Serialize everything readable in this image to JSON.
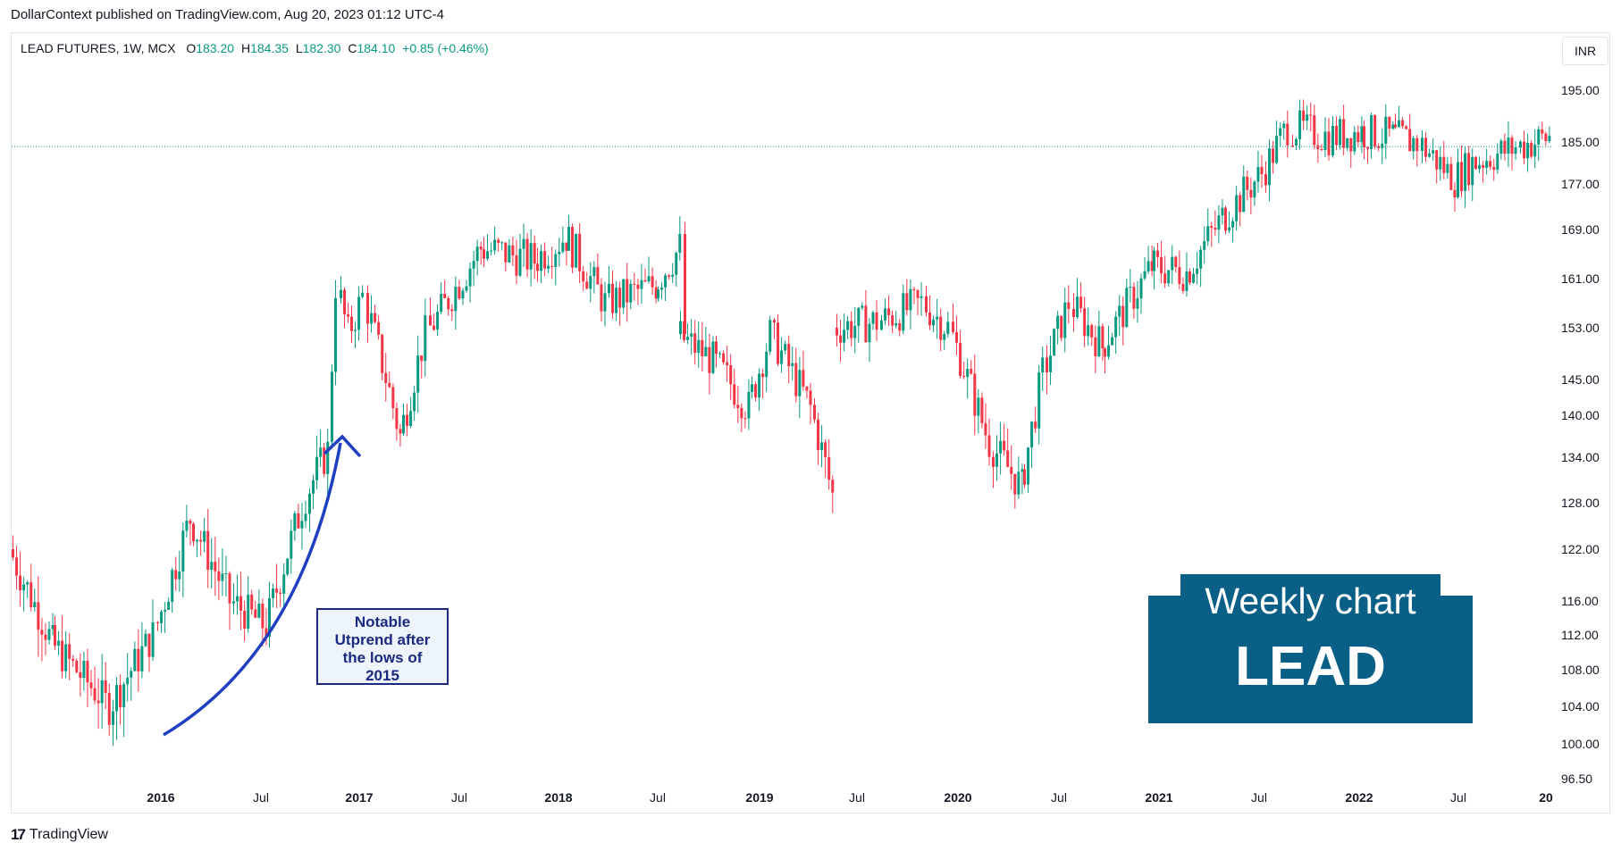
{
  "header": {
    "caption": "DollarContext published on TradingView.com, Aug 20, 2023 01:12 UTC-4"
  },
  "legend": {
    "symbol": "LEAD FUTURES, 1W, MCX",
    "o_label": "O",
    "o": "183.20",
    "h_label": "H",
    "h": "184.35",
    "l_label": "L",
    "l": "182.30",
    "c_label": "C",
    "c": "184.10",
    "change": "+0.85 (+0.46%)"
  },
  "currency": "INR",
  "annotation": {
    "text_lines": [
      "Notable",
      "Utprend after",
      "the lows of",
      "2015"
    ]
  },
  "badge": {
    "line1": "Weekly chart",
    "line2": "LEAD"
  },
  "footer": {
    "brand": "TradingView"
  },
  "colors": {
    "up": "#089981",
    "down": "#f23645",
    "arrow": "#1f3fc2",
    "badge": "#0a5f87",
    "price_line": "#089981"
  },
  "chart_data": {
    "type": "candlestick",
    "timeframe": "1W",
    "y_axis_ticks": [
      "195.00",
      "185.00",
      "177.00",
      "169.00",
      "161.00",
      "153.00",
      "145.00",
      "140.00",
      "134.00",
      "128.00",
      "122.00",
      "116.00",
      "112.00",
      "108.00",
      "104.00",
      "100.00",
      "96.50"
    ],
    "x_axis_ticks": [
      {
        "label": "2016",
        "bold": true
      },
      {
        "label": "Jul",
        "bold": false
      },
      {
        "label": "2017",
        "bold": true
      },
      {
        "label": "Jul",
        "bold": false
      },
      {
        "label": "2018",
        "bold": true
      },
      {
        "label": "Jul",
        "bold": false
      },
      {
        "label": "2019",
        "bold": true
      },
      {
        "label": "Jul",
        "bold": false
      },
      {
        "label": "2020",
        "bold": true
      },
      {
        "label": "Jul",
        "bold": false
      },
      {
        "label": "2021",
        "bold": true
      },
      {
        "label": "Jul",
        "bold": false
      },
      {
        "label": "2022",
        "bold": true
      },
      {
        "label": "Jul",
        "bold": false
      },
      {
        "label": "20",
        "bold": true
      }
    ],
    "last_price": 184.1,
    "price_range_approx": [
      96.5,
      198
    ],
    "path": [
      [
        "2015-08",
        122
      ],
      [
        "2015-10",
        111
      ],
      [
        "2015-12",
        104
      ],
      [
        "2016-02",
        112
      ],
      [
        "2016-04",
        126
      ],
      [
        "2016-06",
        116
      ],
      [
        "2016-08",
        113
      ],
      [
        "2016-10",
        129
      ],
      [
        "2016-12",
        135
      ],
      [
        "2017-01",
        160
      ],
      [
        "2017-02",
        152
      ],
      [
        "2017-03",
        158
      ],
      [
        "2017-05",
        137
      ],
      [
        "2017-07",
        152
      ],
      [
        "2017-09",
        166
      ],
      [
        "2017-11",
        164
      ],
      [
        "2018-01",
        168
      ],
      [
        "2018-03",
        157
      ],
      [
        "2018-05",
        160
      ],
      [
        "2018-07",
        166
      ],
      [
        "2018-08",
        152
      ],
      [
        "2018-10",
        148
      ],
      [
        "2018-12",
        141
      ],
      [
        "2019-01",
        152
      ],
      [
        "2019-03",
        141
      ],
      [
        "2019-05",
        129
      ],
      [
        "2019-07",
        153
      ],
      [
        "2019-09",
        154
      ],
      [
        "2019-11",
        157
      ],
      [
        "2020-01",
        153
      ],
      [
        "2020-03",
        136
      ],
      [
        "2020-05",
        130
      ],
      [
        "2020-07",
        146
      ],
      [
        "2020-09",
        157
      ],
      [
        "2020-11",
        150
      ],
      [
        "2021-01",
        163
      ],
      [
        "2021-03",
        162
      ],
      [
        "2021-05",
        171
      ],
      [
        "2021-07",
        179
      ],
      [
        "2021-09",
        188
      ],
      [
        "2021-11",
        186
      ],
      [
        "2022-01",
        187
      ],
      [
        "2022-03",
        186
      ],
      [
        "2022-05",
        185
      ],
      [
        "2022-07",
        178
      ],
      [
        "2022-09",
        181
      ],
      [
        "2022-11",
        184
      ],
      [
        "2022-12",
        186
      ]
    ],
    "gap_after_index": 25
  }
}
